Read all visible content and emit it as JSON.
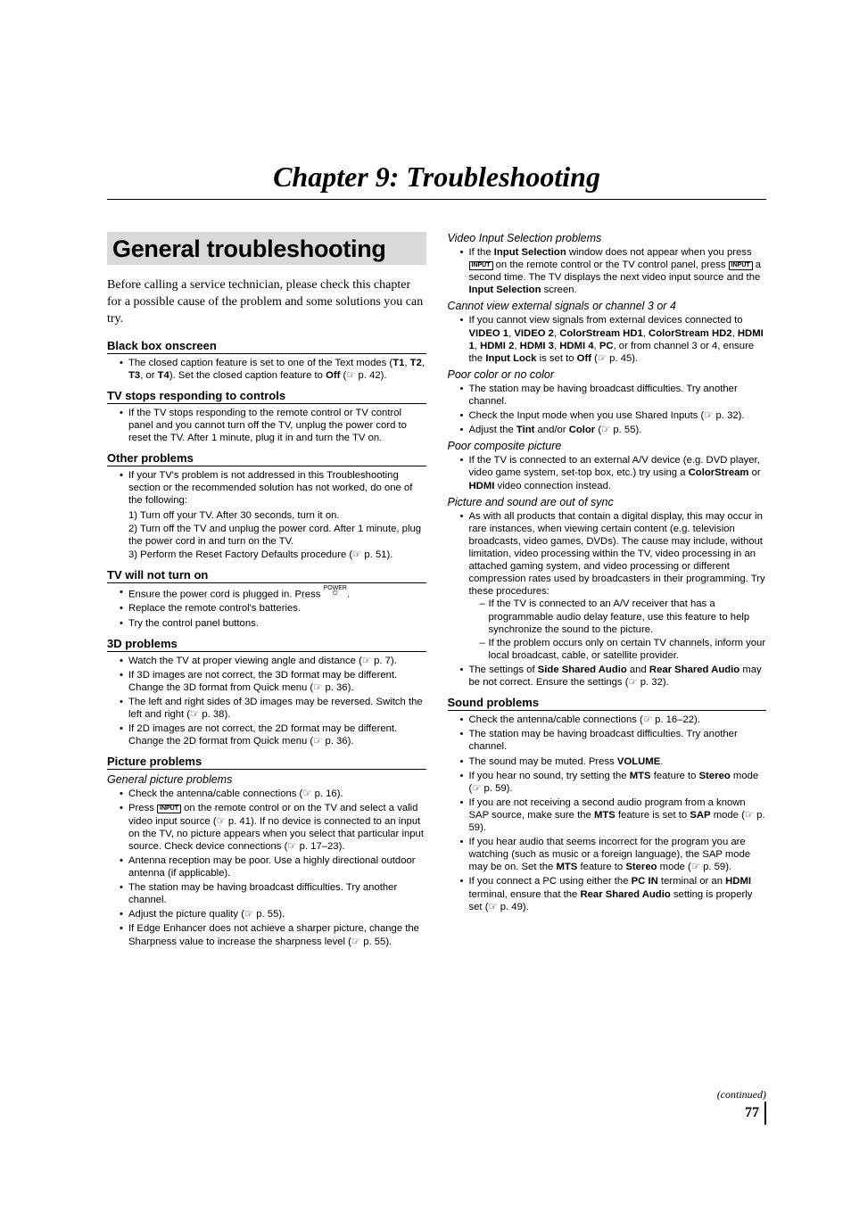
{
  "chapter_title": "Chapter 9: Troubleshooting",
  "section_title": "General troubleshooting",
  "intro": "Before calling a service technician, please check this chapter for a possible cause of the problem and some solutions you can try.",
  "left": {
    "black_box": {
      "head": "Black box onscreen",
      "item": "The closed caption feature is set to one of the Text modes (<b>T1</b>, <b>T2</b>, <b>T3</b>, or <b>T4</b>). Set the closed caption feature to <b>Off</b> (☞ p. 42)."
    },
    "tv_stops": {
      "head": "TV stops responding to controls",
      "item": "If the TV stops responding to the remote control or TV control panel and you cannot turn off the TV, unplug the power cord to reset the TV. After 1 minute, plug it in and turn the TV on."
    },
    "other": {
      "head": "Other problems",
      "item": "If your TV's problem is not addressed in this Troubleshooting section or the recommended solution has not worked, do one of the following:",
      "l1": "1) Turn off your TV. After 30 seconds, turn it on.",
      "l2": "2) Turn off the TV and unplug the power cord. After 1 minute, plug the power cord in and turn on the TV.",
      "l3": "3) Perform the Reset Factory Defaults procedure (☞ p. 51)."
    },
    "will_not": {
      "head": "TV will not turn on",
      "i1_pre": "Ensure the power cord is plugged in. Press ",
      "i1_btn": "POWER",
      "i1_post": ".",
      "i2": "Replace the remote control's batteries.",
      "i3": "Try the control panel buttons."
    },
    "threeD": {
      "head": "3D problems",
      "i1": "Watch the TV at proper viewing angle and distance (☞ p. 7).",
      "i2": "If 3D images are not correct, the 3D format may be different. Change the 3D format from Quick menu (☞ p. 36).",
      "i3": "The left and right sides of 3D images may be reversed. Switch the left and right (☞ p. 38).",
      "i4": "If 2D images are not correct, the 2D format may be different. Change the 2D format from Quick menu (☞ p. 36)."
    },
    "picture": {
      "head": "Picture problems",
      "sub": "General picture problems",
      "i1": "Check the antenna/cable connections (☞ p. 16).",
      "i2_pre": "Press ",
      "i2_btn": "INPUT",
      "i2_post": " on the remote control or on the TV and select a valid video input source (☞ p. 41). If no device is connected to an input on the TV, no picture appears when you select that particular input source. Check device connections (☞ p. 17–23).",
      "i3": "Antenna reception may be poor. Use a highly directional outdoor antenna (if applicable).",
      "i4": "The station may be having broadcast difficulties. Try another channel.",
      "i5": "Adjust the picture quality (☞ p. 55).",
      "i6": "If Edge Enhancer does not achieve a sharper picture, change the Sharpness value to increase the sharpness level (☞ p. 55)."
    }
  },
  "right": {
    "video_input": {
      "sub": "Video Input Selection problems",
      "i1_p1": "If the <b>Input Selection</b> window does not appear when you press ",
      "i1_b1": "INPUT",
      "i1_p2": " on the remote control or the TV control panel, press ",
      "i1_b2": "INPUT",
      "i1_p3": " a second time. The TV displays the next video input source and the <b>Input Selection</b> screen."
    },
    "cannot_view": {
      "sub": "Cannot view external signals or channel 3 or 4",
      "i1": "If you cannot view signals from external devices connected to <b>VIDEO 1</b>, <b>VIDEO 2</b>, <b>ColorStream HD1</b>, <b>ColorStream HD2</b>, <b>HDMI 1</b>, <b>HDMI 2</b>, <b>HDMI 3</b>, <b>HDMI 4</b>, <b>PC</b>, or from channel 3 or 4, ensure the <b>Input Lock</b> is set to <b>Off</b> (☞ p. 45)."
    },
    "poor_color": {
      "sub": "Poor color or no color",
      "i1": "The station may be having broadcast difficulties. Try another channel.",
      "i2": "Check the Input mode when you use Shared Inputs (☞ p. 32).",
      "i3": "Adjust the <b>Tint</b> and/or <b>Color</b> (☞ p. 55)."
    },
    "poor_comp": {
      "sub": "Poor composite picture",
      "i1": "If the TV is connected to an external A/V device (e.g. DVD player, video game system, set-top box, etc.) try using a <b>ColorStream</b> or <b>HDMI</b> video connection instead."
    },
    "pic_sound": {
      "sub": "Picture and sound are out of sync",
      "i1": "As with all products that contain a digital display, this may occur in rare instances, when viewing certain content (e.g. television broadcasts, video games, DVDs). The cause may include, without limitation, video processing within the TV, video processing in an attached gaming system, and video processing or different compression rates used by broadcasters in their programming. Try these procedures:",
      "d1": "If the TV is connected to an A/V receiver that has a programmable audio delay feature, use this feature to help synchronize the sound to the picture.",
      "d2": "If the problem occurs only on certain TV channels, inform your local broadcast, cable, or satellite provider.",
      "i2": "The settings of <b>Side Shared Audio</b> and <b>Rear Shared Audio</b> may be not correct. Ensure the settings (☞ p. 32)."
    },
    "sound": {
      "head": "Sound problems",
      "i1": "Check the antenna/cable connections (☞ p. 16–22).",
      "i2": "The station may be having broadcast difficulties. Try another channel.",
      "i3": "The sound may be muted. Press <b>VOLUME</b>.",
      "i4": "If you hear no sound, try setting the <b>MTS</b> feature to <b>Stereo</b> mode (☞ p. 59).",
      "i5": "If you are not receiving a second audio program from a known SAP source, make sure the <b>MTS</b> feature is set to <b>SAP</b> mode (☞ p. 59).",
      "i6": "If you hear audio that seems incorrect for the program you are watching (such as music or a foreign language), the SAP mode may be on. Set the <b>MTS</b> feature to <b>Stereo</b> mode (☞ p. 59).",
      "i7": "If you connect a PC using either the <b>PC IN</b> terminal or an <b>HDMI</b> terminal, ensure that the <b>Rear Shared Audio</b> setting is properly set (☞ p. 49)."
    }
  },
  "continued": "(continued)",
  "page_num": "77"
}
